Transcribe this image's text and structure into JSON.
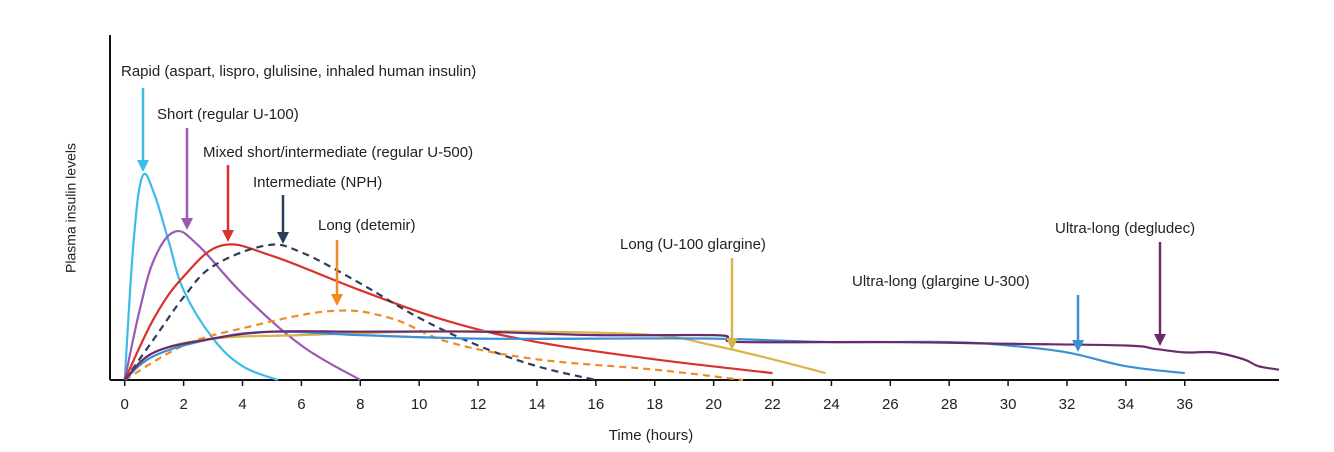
{
  "chart_data": {
    "type": "line",
    "x_label": "Time (hours)",
    "y_label": "Plasma insulin levels",
    "xlim": [
      -0.5,
      39.2
    ],
    "ylim": [
      0,
      100
    ],
    "xticks": [
      0,
      2,
      4,
      6,
      8,
      10,
      12,
      14,
      16,
      18,
      20,
      22,
      24,
      26,
      28,
      30,
      32,
      34,
      36
    ],
    "series": [
      {
        "name": "Rapid (aspart, lispro, glulisine, inhaled human insulin)",
        "color": "#3dbbe9",
        "dashed": false,
        "x": [
          0,
          0.3,
          0.6,
          1,
          1.5,
          2,
          3,
          4,
          5.2
        ],
        "values": [
          0,
          40,
          59,
          54,
          40,
          26,
          12,
          4,
          0
        ]
      },
      {
        "name": "Short (regular U-100)",
        "color": "#9b59b6",
        "dashed": false,
        "x": [
          0,
          0.5,
          1,
          1.7,
          2.5,
          4,
          6,
          8
        ],
        "values": [
          0,
          20,
          35,
          43,
          39,
          25,
          10,
          0
        ]
      },
      {
        "name": "Mixed short/intermediate (regular U-500)",
        "color": "#d9312b",
        "dashed": false,
        "x": [
          0,
          1,
          2,
          3.3,
          5,
          8,
          11,
          14,
          18,
          22
        ],
        "values": [
          0,
          18,
          30,
          39,
          36,
          26,
          17,
          11,
          6,
          2
        ]
      },
      {
        "name": "Intermediate (NPH)",
        "color": "#2c3e5c",
        "dashed": true,
        "x": [
          0,
          1,
          2,
          3,
          4.8,
          6,
          8,
          10,
          12,
          14,
          16
        ],
        "values": [
          0,
          12,
          24,
          33,
          39,
          37,
          28,
          18,
          10,
          4,
          0
        ]
      },
      {
        "name": "Long (detemir)",
        "color": "#f08a24",
        "dashed": true,
        "x": [
          0,
          2,
          4,
          7,
          9,
          11,
          14,
          18,
          21
        ],
        "values": [
          0,
          10,
          15,
          20,
          18,
          11,
          6,
          3,
          0
        ]
      },
      {
        "name": "Long (U-100 glargine)",
        "color": "#d9b44a",
        "dashed": false,
        "x": [
          0,
          1,
          3,
          6,
          10,
          14,
          18,
          20,
          22,
          23.8
        ],
        "values": [
          0,
          8,
          12,
          13,
          14,
          14,
          13,
          10,
          6,
          2
        ]
      },
      {
        "name": "Ultra-long (glargine U-300)",
        "color": "#3a8fd6",
        "dashed": false,
        "x": [
          0,
          1,
          3,
          5,
          8,
          12,
          16,
          20,
          24,
          28,
          30,
          32,
          34,
          36
        ],
        "values": [
          0,
          7,
          12,
          14,
          13,
          12,
          12,
          12,
          11,
          11,
          10,
          8,
          4,
          2
        ]
      },
      {
        "name": "Ultra-long (degludec)",
        "color": "#6b2a6b",
        "dashed": false,
        "x": [
          0,
          1,
          3,
          5,
          8,
          12,
          16,
          20,
          20.5,
          21,
          26,
          30,
          34,
          35,
          36,
          37,
          38,
          38.5,
          39.2
        ],
        "values": [
          0,
          8,
          12,
          14,
          14,
          14,
          13,
          13,
          12,
          11,
          11,
          10.5,
          10,
          9,
          8,
          8,
          6,
          4,
          3
        ]
      }
    ]
  }
}
